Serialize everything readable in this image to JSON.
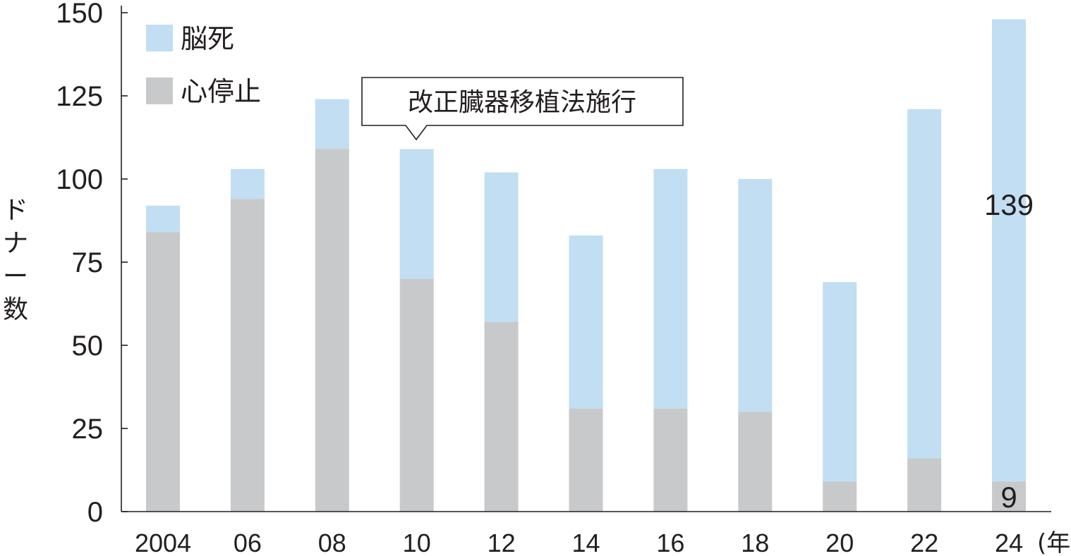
{
  "chart_data": {
    "type": "bar",
    "stacked": true,
    "categories": [
      "2004",
      "06",
      "08",
      "10",
      "12",
      "14",
      "16",
      "18",
      "20",
      "22",
      "24"
    ],
    "series": [
      {
        "name": "心停止",
        "color": "#c8c9ca",
        "values": [
          84,
          94,
          109,
          70,
          57,
          31,
          31,
          30,
          9,
          16,
          9
        ]
      },
      {
        "name": "脳死",
        "color": "#c2def2",
        "values": [
          8,
          9,
          15,
          39,
          45,
          52,
          72,
          70,
          60,
          105,
          139
        ]
      }
    ],
    "legend": {
      "position": "top-left",
      "order": [
        "脳死",
        "心停止"
      ]
    },
    "xlabel": "(年)",
    "ylabel": "ドナー数",
    "ylim": [
      0,
      150
    ],
    "yticks": [
      0,
      25,
      50,
      75,
      100,
      125,
      150
    ],
    "grid": false,
    "annotation": {
      "text": "改正臓器移植法施行",
      "category": "10"
    },
    "data_labels": [
      {
        "category": "24",
        "series": "脳死",
        "text": "139"
      },
      {
        "category": "24",
        "series": "心停止",
        "text": "9"
      }
    ]
  }
}
